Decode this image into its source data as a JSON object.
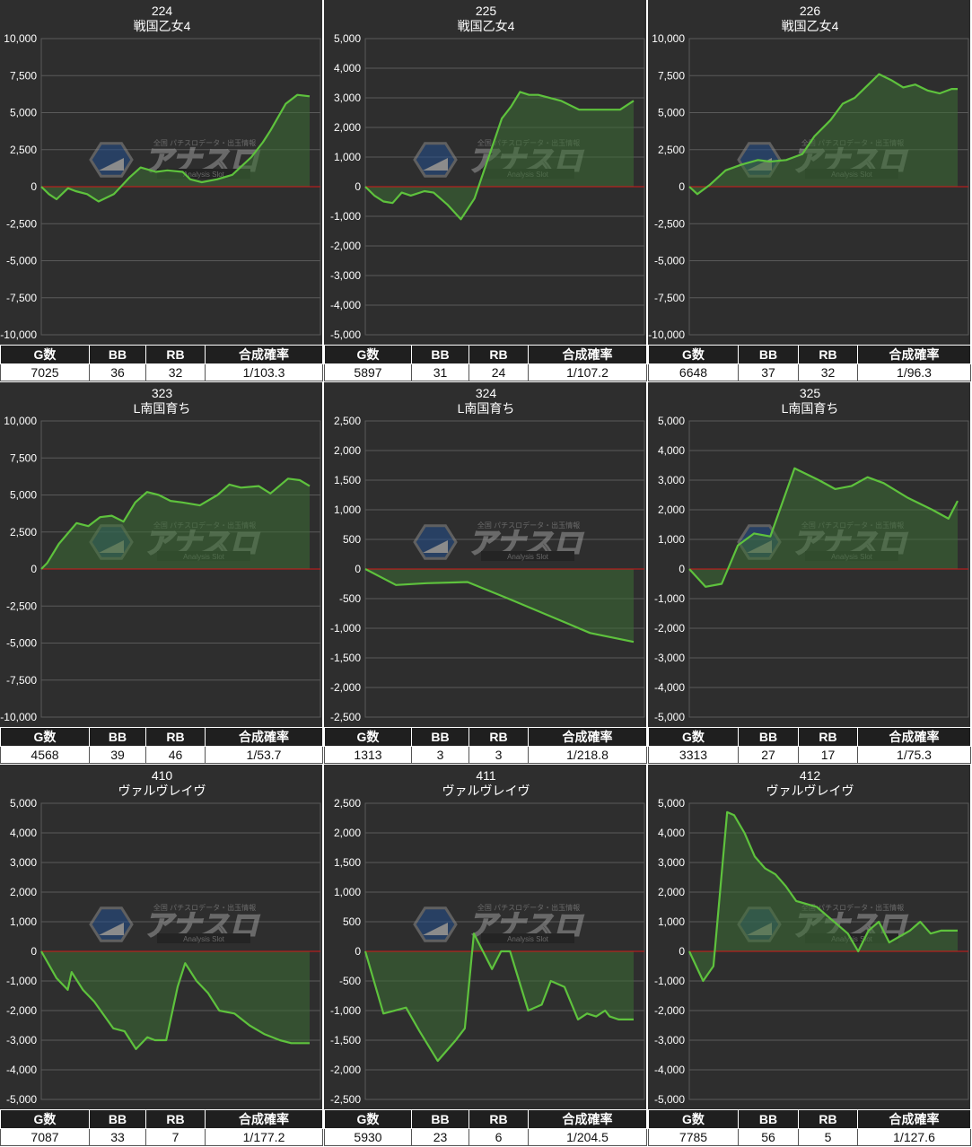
{
  "styles": {
    "background": "#2e2e2e",
    "grid_color": "#5a5a5a",
    "zero_line_color": "#d11a1a",
    "line_color": "#5ec23d",
    "fill_color": "#3c6e34",
    "text_color": "#ffffff",
    "watermark_color": "#6a6a6a"
  },
  "watermark": {
    "brand": "アナスロ",
    "tagline": "全国 パチスロデータ・出玉情報",
    "sub": "Analysis Slot"
  },
  "table_headers": [
    "G数",
    "BB",
    "RB",
    "合成確率"
  ],
  "chart_data": [
    {
      "type": "area",
      "number": "224",
      "machine": "戦国乙女4",
      "ylim": [
        -10000,
        10000
      ],
      "ystep": 2500,
      "y_tick_labels": [
        "10,000",
        "7,500",
        "5,000",
        "2,500",
        "0",
        "-2,500",
        "-5,000",
        "-7,500",
        "-10,000"
      ],
      "x": [
        0,
        200,
        400,
        700,
        900,
        1200,
        1500,
        1900,
        2300,
        2600,
        3000,
        3300,
        3700,
        3900,
        4200,
        4600,
        5000,
        5500,
        5800,
        6000,
        6400,
        6700,
        7025
      ],
      "y": [
        0,
        -500,
        -850,
        -100,
        -300,
        -500,
        -1000,
        -500,
        600,
        1300,
        1000,
        1100,
        1000,
        500,
        300,
        500,
        800,
        2000,
        3000,
        3800,
        5600,
        6200,
        6100
      ],
      "stats": {
        "g": "7025",
        "bb": "36",
        "rb": "32",
        "prob": "1/103.3"
      }
    },
    {
      "type": "area",
      "number": "225",
      "machine": "戦国乙女4",
      "ylim": [
        -5000,
        5000
      ],
      "ystep": 1000,
      "y_tick_labels": [
        "5,000",
        "4,000",
        "3,000",
        "2,000",
        "1,000",
        "0",
        "-1,000",
        "-2,000",
        "-3,000",
        "-4,000",
        "-5,000"
      ],
      "x": [
        0,
        200,
        400,
        600,
        800,
        1000,
        1300,
        1500,
        1800,
        2100,
        2400,
        2600,
        2800,
        3000,
        3200,
        3400,
        3600,
        3800,
        4300,
        4700,
        5200,
        5600,
        5897
      ],
      "y": [
        0,
        -300,
        -500,
        -550,
        -200,
        -300,
        -150,
        -200,
        -600,
        -1100,
        -400,
        500,
        1400,
        2300,
        2700,
        3200,
        3100,
        3100,
        2900,
        2600,
        2600,
        2600,
        2900
      ],
      "stats": {
        "g": "5897",
        "bb": "31",
        "rb": "24",
        "prob": "1/107.2"
      }
    },
    {
      "type": "area",
      "number": "226",
      "machine": "戦国乙女4",
      "ylim": [
        -10000,
        10000
      ],
      "ystep": 2500,
      "y_tick_labels": [
        "10,000",
        "7,500",
        "5,000",
        "2,500",
        "0",
        "-2,500",
        "-5,000",
        "-7,500",
        "-10,000"
      ],
      "x": [
        0,
        200,
        500,
        900,
        1300,
        1700,
        2000,
        2400,
        2800,
        3100,
        3500,
        3800,
        4100,
        4400,
        4700,
        5000,
        5300,
        5600,
        5900,
        6200,
        6500,
        6648
      ],
      "y": [
        0,
        -500,
        100,
        1100,
        1500,
        1800,
        1700,
        1800,
        2200,
        3400,
        4500,
        5600,
        6000,
        6800,
        7600,
        7200,
        6700,
        6900,
        6500,
        6300,
        6600,
        6600
      ],
      "stats": {
        "g": "6648",
        "bb": "37",
        "rb": "32",
        "prob": "1/96.3"
      }
    },
    {
      "type": "area",
      "number": "323",
      "machine": "L南国育ち",
      "ylim": [
        -10000,
        10000
      ],
      "ystep": 2500,
      "y_tick_labels": [
        "10,000",
        "7,500",
        "5,000",
        "2,500",
        "0",
        "-2,500",
        "-5,000",
        "-7,500",
        "-10,000"
      ],
      "x": [
        0,
        100,
        300,
        600,
        800,
        1000,
        1200,
        1400,
        1600,
        1800,
        2000,
        2200,
        2400,
        2700,
        3000,
        3200,
        3400,
        3700,
        3900,
        4200,
        4400,
        4568
      ],
      "y": [
        0,
        400,
        1700,
        3100,
        2900,
        3500,
        3600,
        3200,
        4500,
        5200,
        5000,
        4600,
        4500,
        4300,
        5000,
        5700,
        5500,
        5600,
        5100,
        6100,
        6000,
        5600
      ],
      "stats": {
        "g": "4568",
        "bb": "39",
        "rb": "46",
        "prob": "1/53.7"
      }
    },
    {
      "type": "area",
      "number": "324",
      "machine": "L南国育ち",
      "ylim": [
        -2500,
        2500
      ],
      "ystep": 500,
      "y_tick_labels": [
        "2,500",
        "2,000",
        "1,500",
        "1,000",
        "500",
        "0",
        "-500",
        "-1,000",
        "-1,500",
        "-2,000",
        "-2,500"
      ],
      "x": [
        0,
        150,
        300,
        500,
        700,
        900,
        1100,
        1313
      ],
      "y": [
        0,
        -270,
        -240,
        -220,
        -500,
        -790,
        -1080,
        -1230
      ],
      "stats": {
        "g": "1313",
        "bb": "3",
        "rb": "3",
        "prob": "1/218.8"
      }
    },
    {
      "type": "area",
      "number": "325",
      "machine": "L南国育ち",
      "ylim": [
        -5000,
        5000
      ],
      "ystep": 1000,
      "y_tick_labels": [
        "5,000",
        "4,000",
        "3,000",
        "2,000",
        "1,000",
        "0",
        "-1,000",
        "-2,000",
        "-3,000",
        "-4,000",
        "-5,000"
      ],
      "x": [
        0,
        200,
        400,
        600,
        800,
        1000,
        1300,
        1600,
        1800,
        2000,
        2200,
        2400,
        2700,
        3000,
        3200,
        3313
      ],
      "y": [
        0,
        -600,
        -500,
        800,
        1200,
        1100,
        3400,
        3000,
        2700,
        2800,
        3100,
        2900,
        2400,
        2000,
        1700,
        2300
      ],
      "stats": {
        "g": "3313",
        "bb": "27",
        "rb": "17",
        "prob": "1/75.3"
      }
    },
    {
      "type": "area",
      "number": "410",
      "machine": "ヴァルヴレイヴ",
      "ylim": [
        -5000,
        5000
      ],
      "ystep": 1000,
      "y_tick_labels": [
        "5,000",
        "4,000",
        "3,000",
        "2,000",
        "1,000",
        "0",
        "-1,000",
        "-2,000",
        "-3,000",
        "-4,000",
        "-5,000"
      ],
      "x": [
        0,
        400,
        700,
        800,
        1100,
        1400,
        1900,
        2200,
        2500,
        2800,
        3000,
        3300,
        3600,
        3800,
        4100,
        4400,
        4700,
        5100,
        5500,
        5900,
        6300,
        6600,
        7087
      ],
      "y": [
        0,
        -900,
        -1300,
        -700,
        -1300,
        -1700,
        -2600,
        -2700,
        -3300,
        -2900,
        -3000,
        -3000,
        -1200,
        -400,
        -1000,
        -1400,
        -2000,
        -2100,
        -2500,
        -2800,
        -3000,
        -3100,
        -3100
      ],
      "stats": {
        "g": "7087",
        "bb": "33",
        "rb": "7",
        "prob": "1/177.2"
      }
    },
    {
      "type": "area",
      "number": "411",
      "machine": "ヴァルヴレイヴ",
      "ylim": [
        -2500,
        2500
      ],
      "ystep": 500,
      "y_tick_labels": [
        "2,500",
        "2,000",
        "1,500",
        "1,000",
        "500",
        "0",
        "-500",
        "-1,000",
        "-1,500",
        "-2,000",
        "-2,500"
      ],
      "x": [
        0,
        400,
        900,
        1200,
        1600,
        2000,
        2200,
        2400,
        2800,
        3000,
        3200,
        3400,
        3600,
        3900,
        4100,
        4400,
        4700,
        4900,
        5100,
        5300,
        5400,
        5600,
        5930
      ],
      "y": [
        0,
        -1050,
        -950,
        -1350,
        -1850,
        -1500,
        -1300,
        300,
        -300,
        0,
        0,
        -500,
        -1000,
        -900,
        -500,
        -600,
        -1150,
        -1050,
        -1100,
        -1000,
        -1100,
        -1150,
        -1150
      ],
      "stats": {
        "g": "5930",
        "bb": "23",
        "rb": "6",
        "prob": "1/204.5"
      }
    },
    {
      "type": "area",
      "number": "412",
      "machine": "ヴァルヴレイヴ",
      "ylim": [
        -5000,
        5000
      ],
      "ystep": 1000,
      "y_tick_labels": [
        "5,000",
        "4,000",
        "3,000",
        "2,000",
        "1,000",
        "0",
        "-1,000",
        "-2,000",
        "-3,000",
        "-4,000",
        "-5,000"
      ],
      "x": [
        0,
        400,
        700,
        1100,
        1300,
        1600,
        1900,
        2200,
        2500,
        2800,
        3100,
        3400,
        3700,
        4000,
        4300,
        4600,
        4900,
        5200,
        5500,
        5800,
        6100,
        6400,
        6700,
        7000,
        7300,
        7600,
        7785
      ],
      "y": [
        0,
        -1000,
        -500,
        4700,
        4600,
        4000,
        3200,
        2800,
        2600,
        2200,
        1700,
        1600,
        1500,
        1200,
        900,
        600,
        0,
        700,
        1000,
        300,
        500,
        700,
        1000,
        600,
        700,
        700,
        700
      ],
      "stats": {
        "g": "7785",
        "bb": "56",
        "rb": "5",
        "prob": "1/127.6"
      }
    }
  ]
}
